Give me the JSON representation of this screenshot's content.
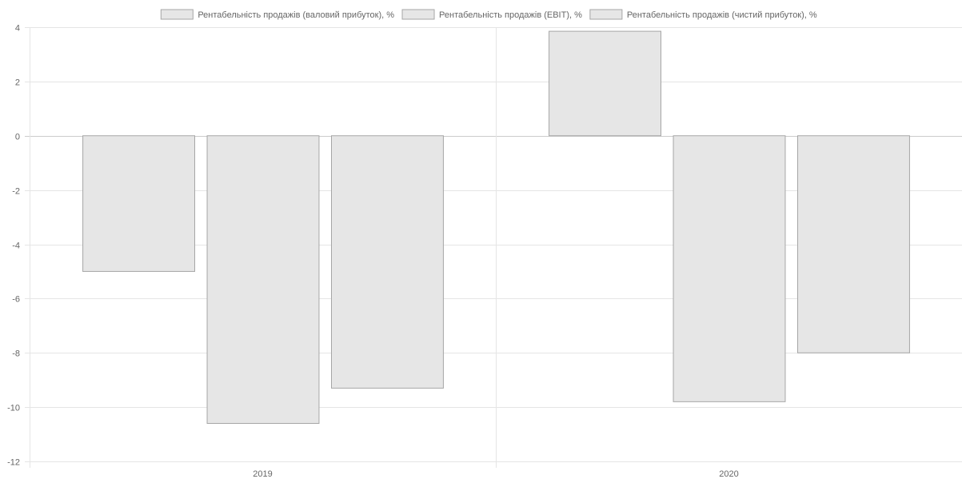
{
  "chart_data": {
    "type": "bar",
    "categories": [
      "2019",
      "2020"
    ],
    "series": [
      {
        "name": "Рентабельність продажів (валовий прибуток), %",
        "values": [
          -5.0,
          3.85
        ]
      },
      {
        "name": "Рентабельність продажів (EBIT), %",
        "values": [
          -10.6,
          -9.8
        ]
      },
      {
        "name": "Рентабельність продажів (чистий прибуток), %",
        "values": [
          -9.3,
          -8.0
        ]
      }
    ],
    "ylim": [
      -12,
      4
    ],
    "yticks": [
      4,
      2,
      0,
      -2,
      -4,
      -6,
      -8,
      -10,
      -12
    ],
    "grid": true,
    "legend": "top",
    "colors": {
      "bar_fill": "#e6e6e6",
      "bar_stroke": "#a6a6a6",
      "grid": "#e5e5e5",
      "zero_line": "#cccccc",
      "text": "#666666"
    }
  }
}
